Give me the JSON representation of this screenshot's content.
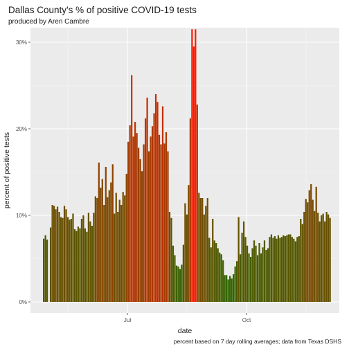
{
  "chart_data": {
    "type": "bar",
    "title": "Dallas County's % of positive COVID-19 tests",
    "subtitle": "produced by Aren Cambre",
    "xlabel": "date",
    "ylabel": "percent of positive tests",
    "caption": "percent based on 7 day rolling averages; data from Texas DSHS",
    "x_ticks": [
      "Jul",
      "Oct"
    ],
    "y_ticks": [
      "0%",
      "10%",
      "20%",
      "30%"
    ],
    "ylim": [
      0,
      31.5
    ],
    "grid": true,
    "color_scale": {
      "low": "#1e6b00",
      "high": "#ff1a00"
    },
    "values": [
      7.3,
      7.7,
      7.2,
      0,
      8.6,
      11.2,
      11.1,
      10.7,
      11.0,
      10.4,
      9.8,
      9.7,
      11.1,
      10.7,
      9.8,
      9.5,
      9.6,
      10.2,
      8.4,
      8.2,
      8.7,
      8.5,
      9.6,
      10.0,
      8.5,
      8.1,
      10.3,
      9.3,
      8.8,
      10.3,
      12.2,
      12.0,
      16.1,
      13.2,
      14.2,
      11.2,
      15.6,
      12.1,
      12.9,
      13.8,
      15.9,
      10.2,
      12.6,
      10.4,
      11.8,
      11.2,
      12.7,
      12.3,
      14.8,
      18.5,
      20.4,
      26.2,
      19.1,
      20.8,
      19.5,
      17.8,
      16.5,
      15.1,
      18.2,
      21.2,
      23.6,
      17.4,
      19.1,
      20.3,
      21.8,
      24.0,
      23.1,
      19.3,
      18.2,
      22.6,
      18.3,
      19.6,
      17.4,
      10.4,
      9.7,
      6.5,
      5.4,
      4.2,
      4.1,
      3.8,
      4.3,
      6.6,
      11.4,
      10.1,
      13.5,
      21.2,
      31.5,
      29.5,
      31.5,
      22.8,
      12.6,
      12.0,
      12.0,
      10.1,
      11.1,
      12.0,
      7.4,
      6.3,
      9.6,
      7.1,
      6.8,
      6.2,
      5.7,
      5.5,
      4.8,
      3.1,
      3.1,
      2.6,
      3.0,
      2.7,
      3.2,
      4.1,
      4.7,
      9.8,
      5.5,
      8.0,
      9.3,
      7.5,
      6.5,
      5.6,
      5.2,
      6.2,
      7.1,
      6.5,
      5.4,
      6.8,
      5.6,
      6.3,
      7.1,
      6.0,
      6.2,
      7.5,
      7.8,
      7.4,
      7.6,
      7.3,
      7.7,
      7.4,
      7.5,
      7.7,
      7.6,
      7.7,
      7.8,
      7.8,
      7.5,
      7.3,
      7.0,
      7.5,
      7.6,
      9.6,
      9.0,
      10.4,
      11.9,
      11.5,
      12.9,
      13.6,
      11.8,
      10.5,
      13.3,
      10.3,
      9.3,
      10.0,
      10.2,
      9.3,
      10.4,
      10.1,
      9.7
    ]
  }
}
